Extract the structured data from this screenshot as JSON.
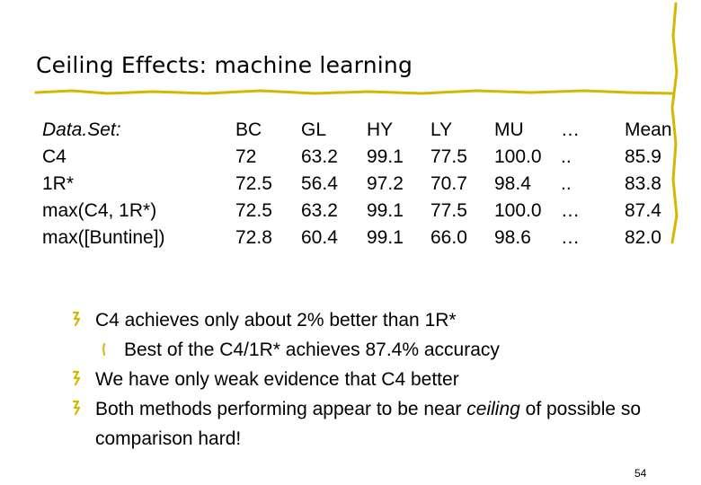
{
  "slide": {
    "title": "Ceiling Effects: machine learning",
    "page_number": "54"
  },
  "table": {
    "columns": [
      {
        "header": "Data.Set:",
        "cells": [
          "C4",
          "1R*",
          "max(C4, 1R*)",
          "max([Buntine])"
        ]
      },
      {
        "header": "BC",
        "cells": [
          "72",
          "72.5",
          "72.5",
          "72.8"
        ]
      },
      {
        "header": "GL",
        "cells": [
          "63.2",
          "56.4",
          "63.2",
          "60.4"
        ]
      },
      {
        "header": "HY",
        "cells": [
          "99.1",
          "97.2",
          "99.1",
          "99.1"
        ]
      },
      {
        "header": "LY",
        "cells": [
          "77.5",
          "70.7",
          "77.5",
          "66.0"
        ]
      },
      {
        "header": "MU",
        "cells": [
          "100.0",
          "98.4",
          "100.0",
          "98.6"
        ]
      },
      {
        "header": "…",
        "cells": [
          "..",
          "..",
          "…",
          "…"
        ]
      },
      {
        "header": "Mean",
        "cells": [
          "85.9",
          "83.8",
          "87.4",
          "82.0"
        ]
      }
    ]
  },
  "bullets": {
    "b1": "C4 achieves only about 2% better than 1R*",
    "b1_sub": "Best of the C4/1R* achieves 87.4% accuracy",
    "b2": "We have only weak evidence that C4 better",
    "b3_pre": "Both methods performing appear to be near ",
    "b3_em": "ceiling",
    "b3_post": " of possible so comparison hard!"
  },
  "colors": {
    "accent": "#d4b800",
    "text": "#000000"
  }
}
